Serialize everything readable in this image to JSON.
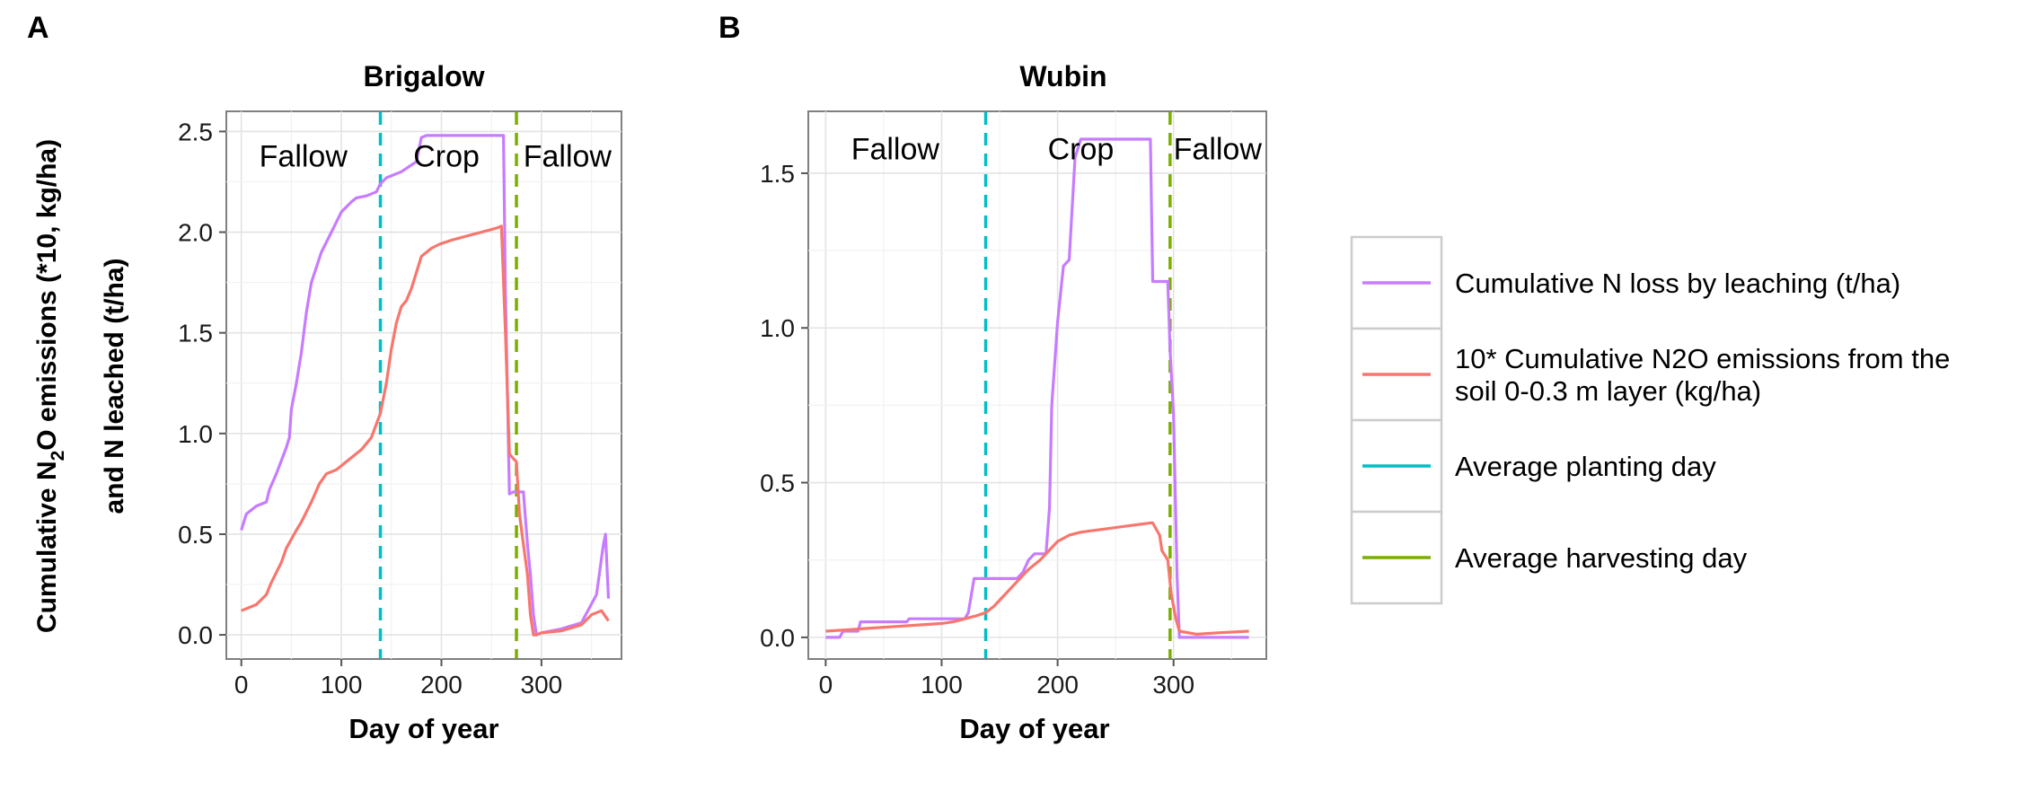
{
  "panel_labels": [
    "A",
    "B"
  ],
  "y_axis_label_line1_pre": "Cumulative N",
  "y_axis_label_line1_sub": "2",
  "y_axis_label_line1_post": "O emissions (*10, kg/ha)",
  "y_axis_label_line2": "and N leached (t/ha)",
  "legend": {
    "items": [
      {
        "label_lines": [
          "Cumulative N loss by leaching (t/ha)"
        ],
        "color": "#c77cff"
      },
      {
        "label_lines": [
          "10* Cumulative N2O emissions from the",
          "soil 0-0.3 m layer (kg/ha)"
        ],
        "color": "#f8766d"
      },
      {
        "label_lines": [
          "Average planting day"
        ],
        "color": "#00bfc4",
        "dashed": true
      },
      {
        "label_lines": [
          "Average harvesting day"
        ],
        "color": "#7cae00",
        "dashed": true
      }
    ]
  },
  "chart_data": [
    {
      "type": "line",
      "title": "Brigalow",
      "xlabel": "Day of year",
      "ylabel": "Cumulative N2O emissions (*10, kg/ha) and N leached (t/ha)",
      "xlim": [
        -15,
        380
      ],
      "ylim": [
        -0.12,
        2.6
      ],
      "xticks": [
        0,
        100,
        200,
        300
      ],
      "yticks": [
        0.0,
        0.5,
        1.0,
        1.5,
        2.0,
        2.5
      ],
      "ytick_labels": [
        "0.0",
        "0.5",
        "1.0",
        "1.5",
        "2.0",
        "2.5"
      ],
      "period_labels": [
        {
          "text": "Fallow",
          "x": 62,
          "y": 2.38
        },
        {
          "text": "Crop",
          "x": 205,
          "y": 2.38
        },
        {
          "text": "Fallow",
          "x": 326,
          "y": 2.38
        }
      ],
      "vlines": [
        {
          "name": "Average planting day",
          "x": 139,
          "color": "#00bfc4"
        },
        {
          "name": "Average harvesting day",
          "x": 275,
          "color": "#7cae00"
        }
      ],
      "series": [
        {
          "name": "Cumulative N loss by leaching (t/ha)",
          "color": "#c77cff",
          "x": [
            0,
            5,
            15,
            25,
            28,
            35,
            45,
            48,
            50,
            55,
            60,
            65,
            70,
            80,
            90,
            100,
            110,
            115,
            125,
            135,
            139,
            145,
            160,
            175,
            180,
            185,
            200,
            215,
            230,
            250,
            262,
            264,
            268,
            272,
            275,
            278,
            282,
            286,
            289,
            292,
            295,
            300,
            320,
            340,
            355,
            362,
            364,
            367
          ],
          "values": [
            0.52,
            0.6,
            0.64,
            0.66,
            0.72,
            0.8,
            0.93,
            0.98,
            1.12,
            1.25,
            1.4,
            1.6,
            1.75,
            1.9,
            2.0,
            2.1,
            2.15,
            2.17,
            2.18,
            2.2,
            2.24,
            2.27,
            2.3,
            2.35,
            2.47,
            2.48,
            2.48,
            2.48,
            2.48,
            2.48,
            2.48,
            1.7,
            0.7,
            0.71,
            0.71,
            0.71,
            0.71,
            0.45,
            0.3,
            0.1,
            0.0,
            0.01,
            0.03,
            0.06,
            0.2,
            0.45,
            0.5,
            0.18
          ]
        },
        {
          "name": "10* Cumulative N2O emissions from the soil 0-0.3 m layer (kg/ha)",
          "color": "#f8766d",
          "x": [
            0,
            15,
            25,
            30,
            40,
            45,
            55,
            60,
            70,
            78,
            85,
            95,
            100,
            110,
            120,
            130,
            139,
            145,
            150,
            155,
            160,
            165,
            170,
            180,
            190,
            198,
            210,
            225,
            240,
            255,
            260,
            264,
            268,
            271,
            275,
            278,
            282,
            286,
            289,
            292,
            295,
            300,
            320,
            340,
            350,
            360,
            367
          ],
          "values": [
            0.12,
            0.15,
            0.2,
            0.26,
            0.36,
            0.43,
            0.52,
            0.56,
            0.66,
            0.75,
            0.8,
            0.82,
            0.84,
            0.88,
            0.92,
            0.98,
            1.1,
            1.25,
            1.42,
            1.55,
            1.63,
            1.66,
            1.72,
            1.88,
            1.92,
            1.94,
            1.96,
            1.98,
            2.0,
            2.02,
            2.03,
            1.5,
            0.9,
            0.88,
            0.86,
            0.6,
            0.45,
            0.3,
            0.1,
            0.0,
            0.0,
            0.01,
            0.02,
            0.05,
            0.1,
            0.12,
            0.07
          ]
        }
      ]
    },
    {
      "type": "line",
      "title": "Wubin",
      "xlabel": "Day of year",
      "ylabel": "",
      "xlim": [
        -15,
        380
      ],
      "ylim": [
        -0.07,
        1.7
      ],
      "xticks": [
        0,
        100,
        200,
        300
      ],
      "yticks": [
        0.0,
        0.5,
        1.0,
        1.5
      ],
      "ytick_labels": [
        "0.0",
        "0.5",
        "1.0",
        "1.5"
      ],
      "period_labels": [
        {
          "text": "Fallow",
          "x": 60,
          "y": 1.58
        },
        {
          "text": "Crop",
          "x": 220,
          "y": 1.58
        },
        {
          "text": "Fallow",
          "x": 338,
          "y": 1.58
        }
      ],
      "vlines": [
        {
          "name": "Average planting day",
          "x": 138,
          "color": "#00bfc4"
        },
        {
          "name": "Average harvesting day",
          "x": 297,
          "color": "#7cae00"
        }
      ],
      "series": [
        {
          "name": "Cumulative N loss by leaching (t/ha)",
          "color": "#c77cff",
          "x": [
            0,
            12,
            15,
            28,
            30,
            70,
            72,
            120,
            123,
            128,
            135,
            165,
            170,
            175,
            180,
            190,
            193,
            195,
            200,
            205,
            210,
            215,
            220,
            280,
            282,
            295,
            297,
            300,
            303,
            305,
            310,
            365
          ],
          "values": [
            0.0,
            0.0,
            0.02,
            0.02,
            0.05,
            0.05,
            0.06,
            0.06,
            0.08,
            0.19,
            0.19,
            0.19,
            0.21,
            0.25,
            0.27,
            0.27,
            0.42,
            0.75,
            1.02,
            1.2,
            1.22,
            1.55,
            1.61,
            1.61,
            1.15,
            1.15,
            0.93,
            0.72,
            0.2,
            0.0,
            0.0,
            0.0
          ]
        },
        {
          "name": "10* Cumulative N2O emissions from the soil 0-0.3 m layer (kg/ha)",
          "color": "#f8766d",
          "x": [
            0,
            20,
            40,
            60,
            80,
            100,
            110,
            120,
            130,
            138,
            145,
            155,
            165,
            175,
            185,
            195,
            200,
            210,
            220,
            240,
            260,
            280,
            282,
            288,
            290,
            295,
            298,
            302,
            305,
            320,
            340,
            365
          ],
          "values": [
            0.02,
            0.025,
            0.03,
            0.035,
            0.04,
            0.045,
            0.05,
            0.06,
            0.07,
            0.08,
            0.1,
            0.14,
            0.18,
            0.22,
            0.25,
            0.29,
            0.31,
            0.33,
            0.34,
            0.35,
            0.36,
            0.37,
            0.37,
            0.33,
            0.28,
            0.25,
            0.14,
            0.06,
            0.02,
            0.01,
            0.015,
            0.02
          ]
        }
      ]
    }
  ]
}
